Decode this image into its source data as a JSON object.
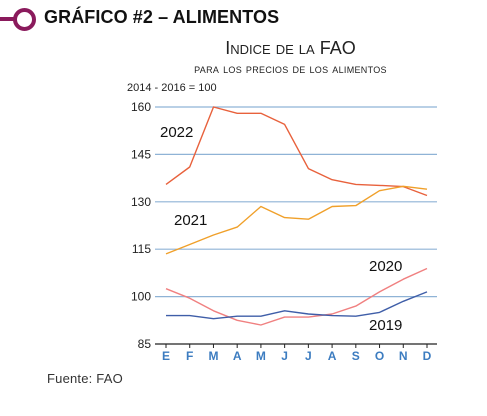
{
  "header": {
    "title": "GRÁFICO #2 – ALIMENTOS"
  },
  "source": "Fuente: FAO",
  "chart_data": {
    "type": "line",
    "title": "Indice de la FAO",
    "subtitle": "para los precios de los alimentos",
    "base_label": "2014 - 2016 = 100",
    "categories": [
      "E",
      "F",
      "M",
      "A",
      "M",
      "J",
      "J",
      "A",
      "S",
      "O",
      "N",
      "D"
    ],
    "yticks": [
      "160",
      "145",
      "130",
      "115",
      "100",
      "85"
    ],
    "ylim": [
      85,
      160
    ],
    "grid": true,
    "colors": {
      "grid": "#8fb3d6",
      "axis": "#222222",
      "tick_labels_x": "#3c7cc0",
      "s2022": "#e8613c",
      "s2021": "#f0a02a",
      "s2020": "#f08080",
      "s2019": "#3f5ea8"
    },
    "series": [
      {
        "name": "2022",
        "color_key": "s2022",
        "values": [
          135.5,
          141.0,
          160.0,
          158.0,
          158.0,
          154.5,
          140.5,
          137.0,
          135.5,
          135.2,
          134.8,
          132.0
        ]
      },
      {
        "name": "2021",
        "color_key": "s2021",
        "values": [
          113.5,
          116.5,
          119.5,
          122.0,
          128.5,
          125.0,
          124.5,
          128.5,
          128.8,
          133.5,
          134.9,
          134.0
        ]
      },
      {
        "name": "2020",
        "color_key": "s2020",
        "values": [
          102.5,
          99.5,
          95.5,
          92.5,
          91.0,
          93.5,
          93.5,
          94.5,
          97.0,
          101.5,
          105.5,
          108.9
        ]
      },
      {
        "name": "2019",
        "color_key": "s2019",
        "values": [
          94.0,
          94.0,
          93.0,
          93.8,
          93.8,
          95.5,
          94.5,
          94.0,
          93.8,
          95.0,
          98.5,
          101.5
        ]
      }
    ]
  }
}
